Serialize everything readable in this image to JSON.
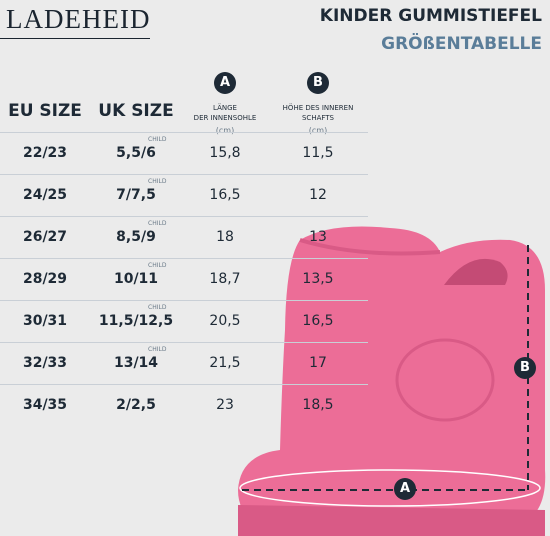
{
  "brand": "LADEHEID",
  "title": "KINDER GUMMISTIEFEL",
  "subtitle": "GRÖßENTABELLE",
  "columns": {
    "eu": "EU SIZE",
    "uk": "UK SIZE",
    "a": {
      "marker": "A",
      "line1": "LÄNGE",
      "line2": "DER INNENSOHLE",
      "unit": "(cm)"
    },
    "b": {
      "marker": "B",
      "line1": "HÖHE DES INNEREN",
      "line2": "SCHAFTS",
      "unit": "(cm)"
    }
  },
  "rows": [
    {
      "eu": "22/23",
      "uk": "5,5/6",
      "child": "CHILD",
      "a": "15,8",
      "b": "11,5"
    },
    {
      "eu": "24/25",
      "uk": "7/7,5",
      "child": "CHILD",
      "a": "16,5",
      "b": "12"
    },
    {
      "eu": "26/27",
      "uk": "8,5/9",
      "child": "CHILD",
      "a": "18",
      "b": "13"
    },
    {
      "eu": "28/29",
      "uk": "10/11",
      "child": "CHILD",
      "a": "18,7",
      "b": "13,5"
    },
    {
      "eu": "30/31",
      "uk": "11,5/12,5",
      "child": "CHILD",
      "a": "20,5",
      "b": "16,5"
    },
    {
      "eu": "32/33",
      "uk": "13/14",
      "child": "CHILD",
      "a": "21,5",
      "b": "17"
    },
    {
      "eu": "34/35",
      "uk": "2/2,5",
      "a": "23",
      "b": "18,5"
    }
  ]
}
